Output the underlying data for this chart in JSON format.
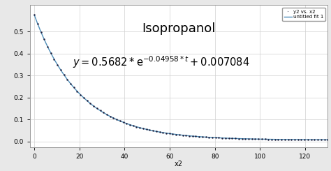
{
  "title": "Isopropanol",
  "a": 0.5682,
  "b": -0.04958,
  "c": 0.007084,
  "x_min": -2,
  "x_max": 130,
  "y_min": -0.025,
  "y_max": 0.62,
  "x_ticks": [
    0,
    20,
    40,
    60,
    80,
    100,
    120
  ],
  "y_ticks": [
    0,
    0.1,
    0.2,
    0.3,
    0.4,
    0.5
  ],
  "xlabel": "x2",
  "line_color": "#4e8db8",
  "dot_color": "#1c1c3a",
  "bg_color": "#e8e8e8",
  "plot_bg_color": "#ffffff",
  "legend_label_dots": "y2 vs. x2",
  "legend_label_line": "untitled fit 1",
  "title_fontsize": 13,
  "eq_fontsize": 10.5,
  "tick_fontsize": 6.5,
  "label_fontsize": 7,
  "legend_fontsize": 5.0
}
